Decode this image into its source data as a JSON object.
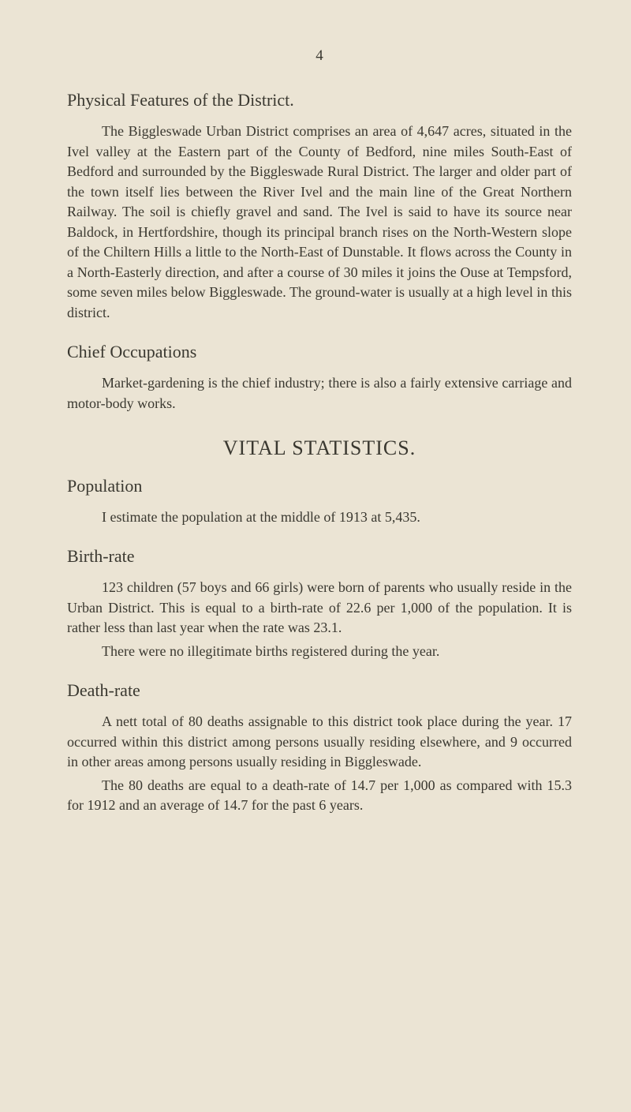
{
  "page_number": "4",
  "sections": {
    "physical_features": {
      "heading": "Physical Features of the District.",
      "body": "The Biggleswade Urban District comprises an area of 4,647 acres, situated in the Ivel valley at the Eastern part of the County of Bedford, nine miles South-East of Bedford and surrounded by the Biggleswade Rural District. The larger and older part of the town itself lies between the River Ivel and the main line of the Great Northern Railway. The soil is chiefly gravel and sand. The Ivel is said to have its source near Baldock, in Hertfordshire, though its principal branch rises on the North-Western slope of the Chiltern Hills a little to the North-East of Dunstable. It flows across the County in a North-Easterly direction, and after a course of 30 miles it joins the Ouse at Tempsford, some seven miles below Biggleswade. The ground-water is usually at a high level in this district."
    },
    "chief_occupations": {
      "heading": "Chief Occupations",
      "body": "Market-gardening is the chief industry; there is also a fairly extensive carriage and motor-body works."
    },
    "vital_statistics": {
      "heading": "VITAL STATISTICS."
    },
    "population": {
      "heading": "Population",
      "body": "I estimate the population at the middle of 1913 at 5,435."
    },
    "birth_rate": {
      "heading": "Birth-rate",
      "body1": "123 children (57 boys and 66 girls) were born of parents who usually reside in the Urban District. This is equal to a birth-rate of 22.6 per 1,000 of the population. It is rather less than last year when the rate was 23.1.",
      "body2": "There were no illegitimate births registered during the year."
    },
    "death_rate": {
      "heading": "Death-rate",
      "body1": "A nett total of 80 deaths assignable to this district took place during the year. 17 occurred within this district among persons usually residing elsewhere, and 9 occurred in other areas among persons usually residing in Biggleswade.",
      "body2": "The 80 deaths are equal to a death-rate of 14.7 per 1,000 as compared with 15.3 for 1912 and an average of 14.7 for the past 6 years."
    }
  }
}
